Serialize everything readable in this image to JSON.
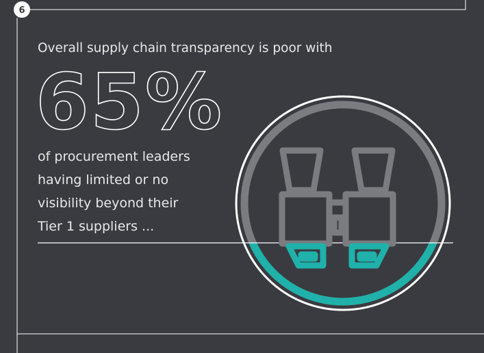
{
  "badge": "6",
  "lead": "Overall supply chain transparency is poor with",
  "stat": "65%",
  "description": [
    "of procurement leaders",
    "having limited or no",
    "visibility beyond their",
    "Tier 1 suppliers ..."
  ]
}
